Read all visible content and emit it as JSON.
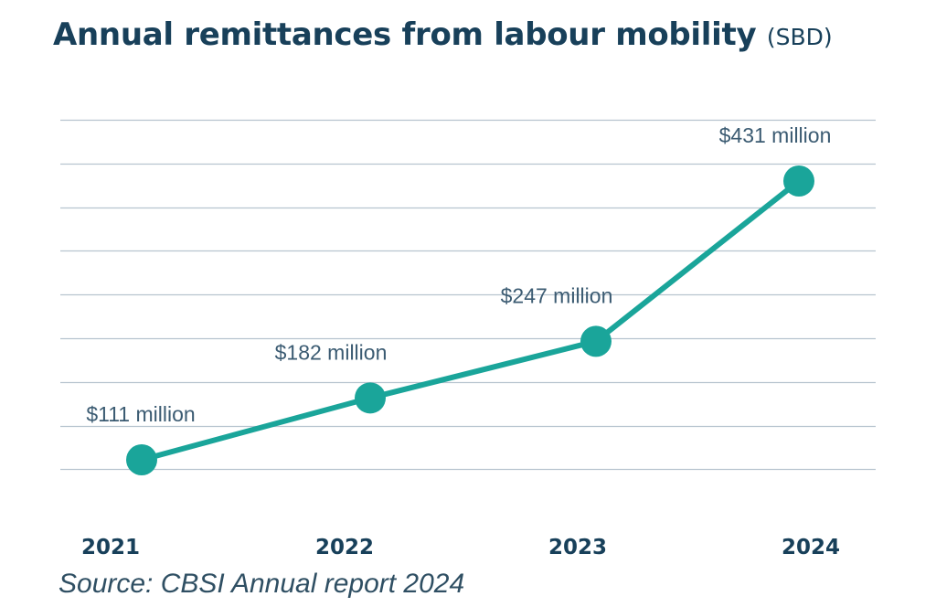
{
  "chart": {
    "title": "Annual remittances from labour mobility",
    "title_unit": "(SBD)",
    "source": "Source: CBSI Annual report 2024"
  },
  "chart_data": {
    "type": "line",
    "title": "Annual remittances from labour mobility (SBD)",
    "categories": [
      "2021",
      "2022",
      "2023",
      "2024"
    ],
    "series": [
      {
        "values": [
          111,
          182,
          247,
          431
        ]
      }
    ],
    "data_labels": [
      "$111 million",
      "$182 million",
      "$247 million",
      "$431 million"
    ],
    "unit": "SBD million",
    "grid": true,
    "legend": "none",
    "colors": {
      "line": "#1aa59a",
      "grid": "#b7c4cf",
      "label": "#3b5b72",
      "axis_label": "#18405a"
    }
  }
}
